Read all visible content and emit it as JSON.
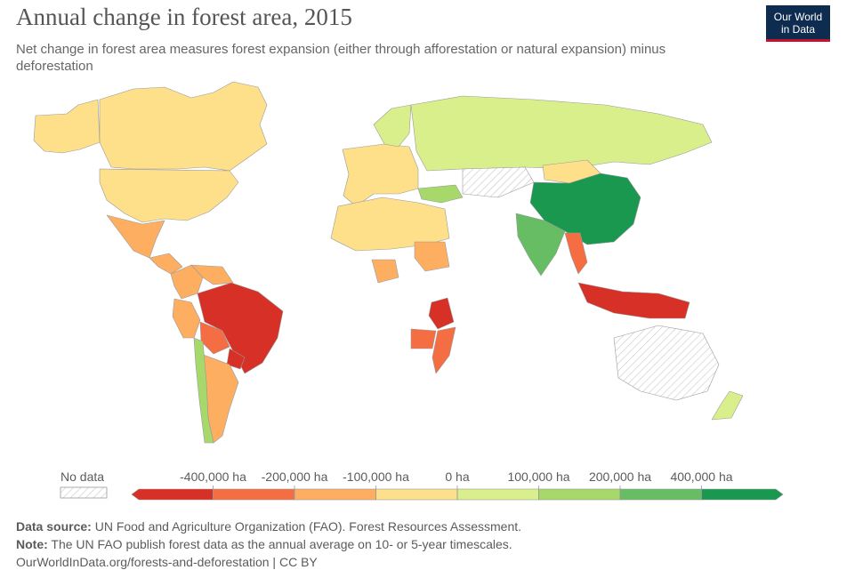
{
  "header": {
    "title": "Annual change in forest area, 2015",
    "subtitle": "Net change in forest area measures forest expansion (either through afforestation or natural expansion) minus deforestation",
    "logo_line1": "Our World",
    "logo_line2": "in Data"
  },
  "colors": {
    "no_data_hatch": "#cccccc",
    "ocean": "#ffffff",
    "border": "#999999",
    "bins": [
      "#d73027",
      "#f46d43",
      "#fdae61",
      "#fee08b",
      "#d9ef8b",
      "#a6d96a",
      "#66bd63",
      "#1a9850"
    ]
  },
  "legend": {
    "no_data_label": "No data",
    "tick_labels": [
      "-400,000 ha",
      "-200,000 ha",
      "-100,000 ha",
      "0 ha",
      "100,000 ha",
      "200,000 ha",
      "400,000 ha"
    ]
  },
  "map_regions": [
    {
      "name": "Canada",
      "color": "#fee08b"
    },
    {
      "name": "Alaska",
      "color": "#fee08b"
    },
    {
      "name": "United States",
      "color": "#fee08b"
    },
    {
      "name": "Mexico",
      "color": "#fdae61"
    },
    {
      "name": "Central America",
      "color": "#fdae61"
    },
    {
      "name": "Colombia",
      "color": "#fdae61"
    },
    {
      "name": "Venezuela",
      "color": "#fdae61"
    },
    {
      "name": "Peru",
      "color": "#fdae61"
    },
    {
      "name": "Brazil",
      "color": "#d73027"
    },
    {
      "name": "Bolivia",
      "color": "#f46d43"
    },
    {
      "name": "Paraguay",
      "color": "#d73027"
    },
    {
      "name": "Argentina",
      "color": "#fdae61"
    },
    {
      "name": "Chile",
      "color": "#a6d96a"
    },
    {
      "name": "Europe",
      "color": "#fee08b"
    },
    {
      "name": "Scandinavia",
      "color": "#d9ef8b"
    },
    {
      "name": "Russia",
      "color": "#d9ef8b"
    },
    {
      "name": "Turkey",
      "color": "#a6d96a"
    },
    {
      "name": "Kazakhstan",
      "color": "#ffffff"
    },
    {
      "name": "Mongolia",
      "color": "#fee08b"
    },
    {
      "name": "China",
      "color": "#1a9850"
    },
    {
      "name": "India",
      "color": "#66bd63"
    },
    {
      "name": "Myanmar",
      "color": "#f46d43"
    },
    {
      "name": "Indonesia",
      "color": "#d73027"
    },
    {
      "name": "North Africa",
      "color": "#fee08b"
    },
    {
      "name": "Nigeria",
      "color": "#fdae61"
    },
    {
      "name": "Sudan",
      "color": "#fdae61"
    },
    {
      "name": "Tanzania",
      "color": "#d73027"
    },
    {
      "name": "Zambia",
      "color": "#f46d43"
    },
    {
      "name": "Mozambique",
      "color": "#f46d43"
    },
    {
      "name": "Australia",
      "color": "#ffffff"
    },
    {
      "name": "New Zealand",
      "color": "#d9ef8b"
    }
  ],
  "footer": {
    "source_label": "Data source:",
    "source_text": " UN Food and Agriculture Organization (FAO). Forest Resources Assessment.",
    "note_label": "Note:",
    "note_text": " The UN FAO publish forest data as the annual average on 10- or 5-year timescales.",
    "url_text": "OurWorldInData.org/forests-and-deforestation | CC BY"
  }
}
